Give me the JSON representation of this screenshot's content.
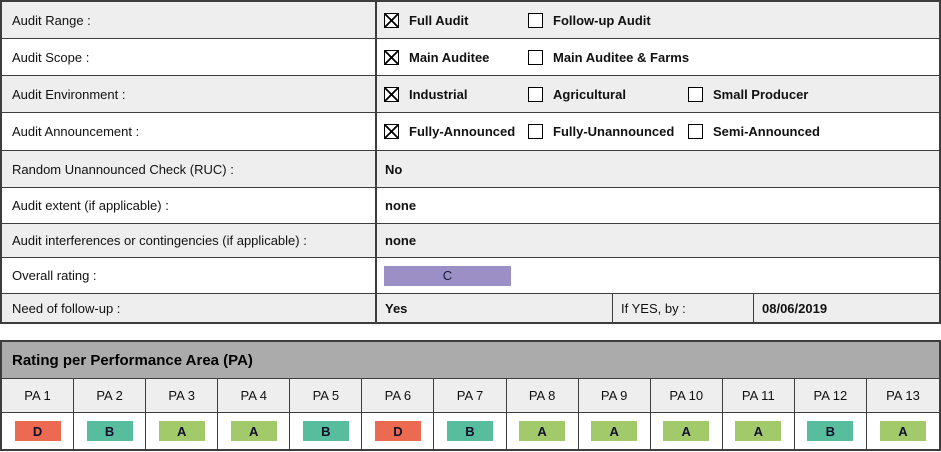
{
  "form": {
    "rows": [
      {
        "label": "Audit Range :",
        "options": [
          {
            "label": "Full Audit",
            "checked": true
          },
          {
            "label": "Follow-up Audit",
            "checked": false
          }
        ]
      },
      {
        "label": "Audit Scope :",
        "options": [
          {
            "label": "Main Auditee",
            "checked": true
          },
          {
            "label": "Main Auditee & Farms",
            "checked": false
          }
        ]
      },
      {
        "label": "Audit Environment :",
        "options": [
          {
            "label": "Industrial",
            "checked": true
          },
          {
            "label": "Agricultural",
            "checked": false
          },
          {
            "label": "Small Producer",
            "checked": false
          }
        ]
      },
      {
        "label": "Audit Announcement :",
        "options": [
          {
            "label": "Fully-Announced",
            "checked": true
          },
          {
            "label": "Fully-Unannounced",
            "checked": false
          },
          {
            "label": "Semi-Announced",
            "checked": false
          }
        ]
      },
      {
        "label": "Random Unannounced Check (RUC) :",
        "value": "No"
      },
      {
        "label": "Audit extent (if applicable) :",
        "value": "none"
      },
      {
        "label": "Audit interferences or contingencies (if applicable) :",
        "value": "none"
      },
      {
        "label": "Overall rating :",
        "rating": {
          "grade": "C",
          "color": "#9b8fc6"
        }
      },
      {
        "label": "Need of follow-up :",
        "value": "Yes",
        "if_yes_label": "If YES, by :",
        "if_yes_date": "08/06/2019"
      }
    ]
  },
  "pa_table": {
    "title": "Rating per Performance Area (PA)",
    "columns": [
      "PA 1",
      "PA 2",
      "PA 3",
      "PA 4",
      "PA 5",
      "PA 6",
      "PA 7",
      "PA 8",
      "PA 9",
      "PA 10",
      "PA 11",
      "PA 12",
      "PA 13"
    ],
    "ratings": [
      {
        "grade": "D",
        "color": "#eb6a51"
      },
      {
        "grade": "B",
        "color": "#58bd9c"
      },
      {
        "grade": "A",
        "color": "#a2ca6b"
      },
      {
        "grade": "A",
        "color": "#a2ca6b"
      },
      {
        "grade": "B",
        "color": "#58bd9c"
      },
      {
        "grade": "D",
        "color": "#eb6a51"
      },
      {
        "grade": "B",
        "color": "#58bd9c"
      },
      {
        "grade": "A",
        "color": "#a2ca6b"
      },
      {
        "grade": "A",
        "color": "#a2ca6b"
      },
      {
        "grade": "A",
        "color": "#a2ca6b"
      },
      {
        "grade": "A",
        "color": "#a2ca6b"
      },
      {
        "grade": "B",
        "color": "#58bd9c"
      },
      {
        "grade": "A",
        "color": "#a2ca6b"
      }
    ]
  }
}
